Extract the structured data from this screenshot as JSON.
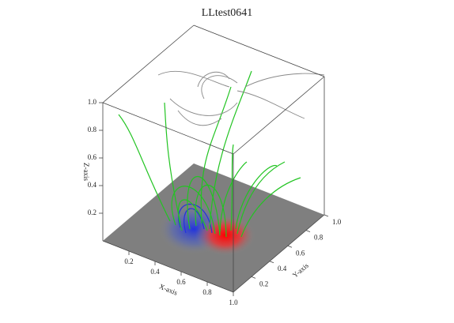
{
  "chart_data": {
    "type": "field-lines-3d",
    "title": "LLtest0641",
    "xlabel": "X-axis",
    "ylabel": "Y-axis",
    "zlabel": "Z-axis",
    "xlim": [
      0,
      1
    ],
    "ylim": [
      0,
      1
    ],
    "zlim": [
      0,
      1
    ],
    "xticks": [
      0.2,
      0.4,
      0.6,
      0.8,
      {
        "value": 1,
        "label": "1.0"
      }
    ],
    "yticks": [
      0.2,
      0.4,
      0.6,
      0.8,
      {
        "value": 1,
        "label": "1.0"
      }
    ],
    "zticks": [
      0.2,
      0.4,
      0.6,
      0.8,
      {
        "value": 1,
        "label": "1.0"
      }
    ]
  }
}
